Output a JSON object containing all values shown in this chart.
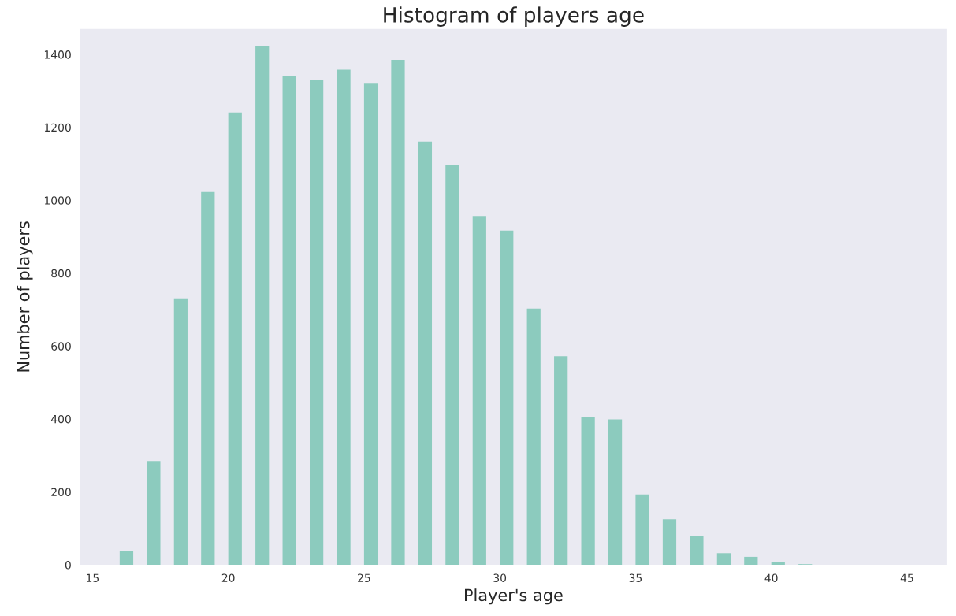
{
  "chart_data": {
    "type": "bar",
    "title": "Histogram of players age",
    "xlabel": "Player's age",
    "ylabel": "Number of players",
    "x": [
      16.25,
      17.25,
      18.25,
      19.25,
      20.25,
      21.25,
      22.25,
      23.25,
      24.25,
      25.25,
      26.25,
      27.25,
      28.25,
      29.25,
      30.25,
      31.25,
      32.25,
      33.25,
      34.25,
      35.25,
      36.25,
      37.25,
      38.25,
      39.25,
      40.25,
      41.25
    ],
    "values": [
      38,
      285,
      731,
      1023,
      1241,
      1423,
      1340,
      1330,
      1358,
      1320,
      1385,
      1161,
      1098,
      957,
      917,
      703,
      572,
      404,
      399,
      193,
      125,
      80,
      32,
      22,
      8,
      2
    ],
    "color": "#8ccbbe",
    "xlim": [
      14.55,
      46.45
    ],
    "xticks": [
      15,
      20,
      25,
      30,
      35,
      40,
      45
    ],
    "ylim": [
      0,
      1470
    ],
    "yticks": [
      0,
      200,
      400,
      600,
      800,
      1000,
      1200,
      1400
    ],
    "grid": false
  }
}
